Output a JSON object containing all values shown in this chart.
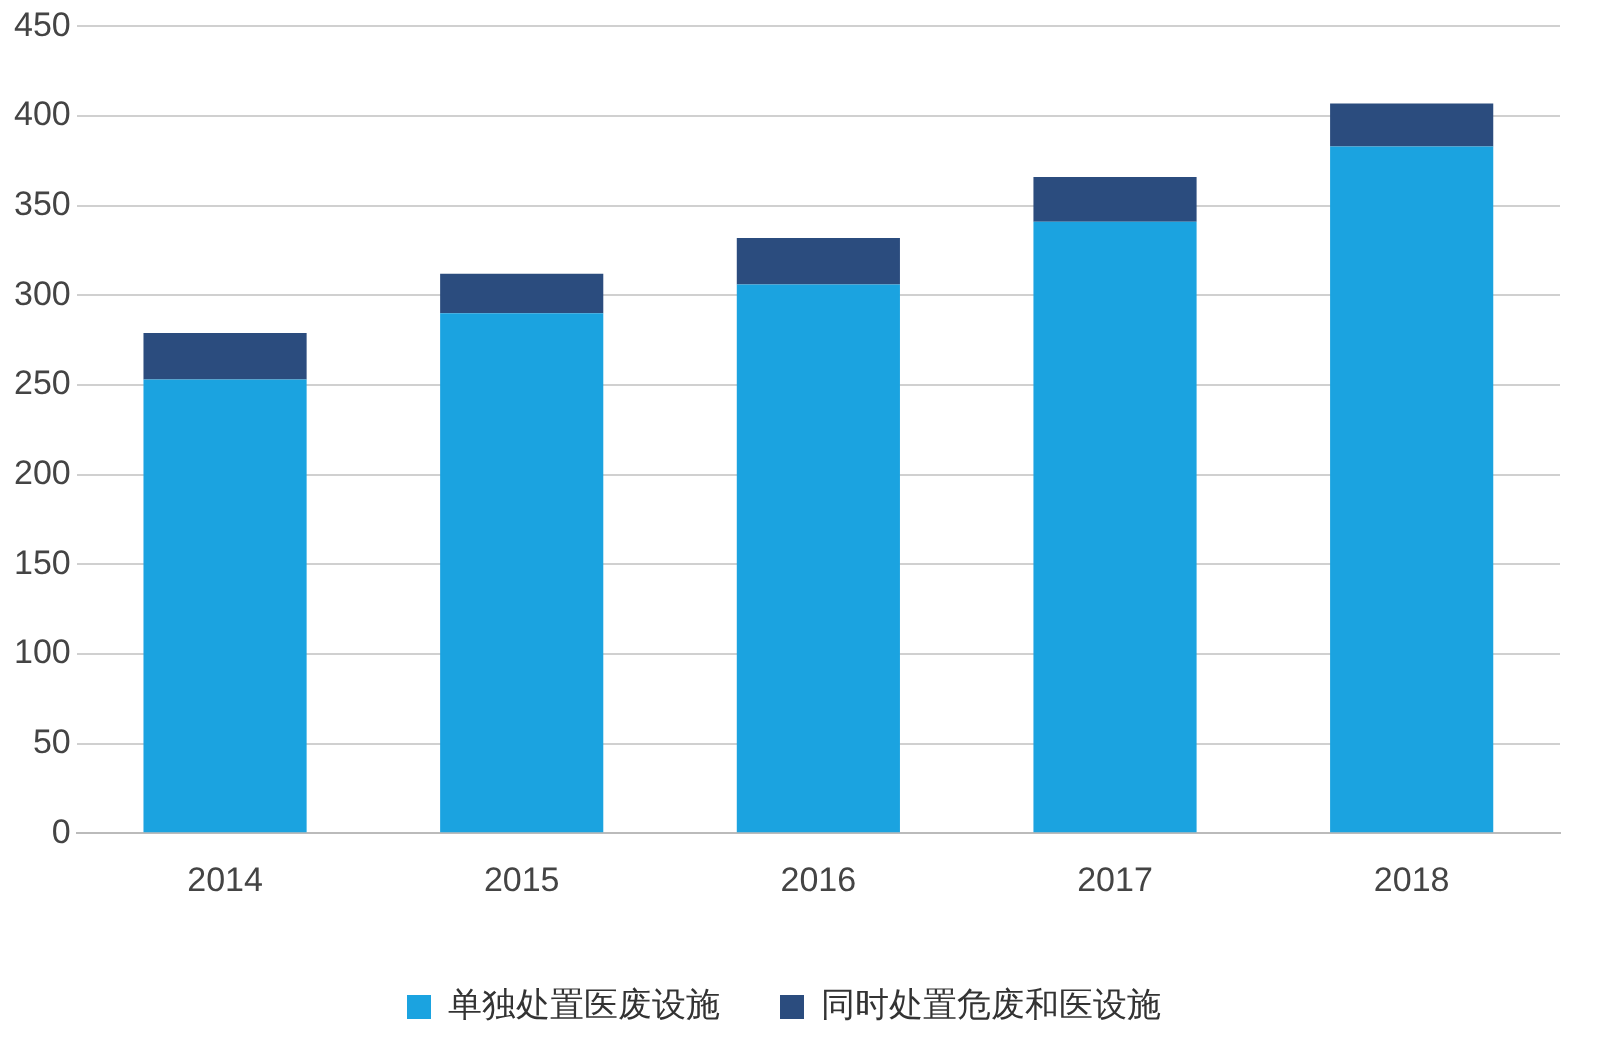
{
  "chart_data": {
    "type": "bar",
    "stacked": true,
    "categories": [
      "2014",
      "2015",
      "2016",
      "2017",
      "2018"
    ],
    "series": [
      {
        "name": "单独处置医废设施",
        "color": "#1ba3e0",
        "values": [
          253,
          290,
          306,
          341,
          383
        ]
      },
      {
        "name": "同时处置危废和医设施",
        "color": "#2b4c7e",
        "values": [
          26,
          22,
          26,
          25,
          24
        ]
      }
    ],
    "ylim": [
      0,
      450
    ],
    "yticks": [
      0,
      50,
      100,
      150,
      200,
      250,
      300,
      350,
      400,
      450
    ],
    "grid": "y",
    "legend": "bottom"
  }
}
